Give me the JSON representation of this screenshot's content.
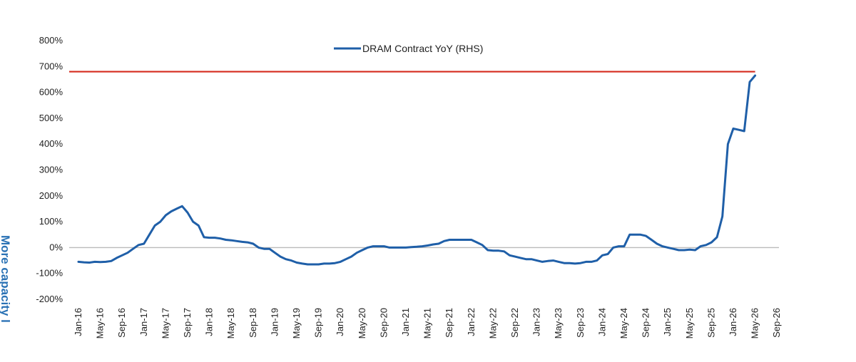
{
  "side_label": "More capacity l",
  "chart_data": {
    "type": "line",
    "title": "",
    "xlabel": "",
    "ylabel": "",
    "ylim": [
      -200,
      800
    ],
    "y_ticks": [
      800,
      700,
      600,
      500,
      400,
      300,
      200,
      100,
      0,
      -100,
      -200
    ],
    "y_tick_labels": [
      "800%",
      "700%",
      "600%",
      "500%",
      "400%",
      "300%",
      "200%",
      "100%",
      "0%",
      "-100%",
      "-200%"
    ],
    "x_tick_labels": [
      "Jan-16",
      "May-16",
      "Sep-16",
      "Jan-17",
      "May-17",
      "Sep-17",
      "Jan-18",
      "May-18",
      "Sep-18",
      "Jan-19",
      "May-19",
      "Sep-19",
      "Jan-20",
      "May-20",
      "Sep-20",
      "Jan-21",
      "May-21",
      "Sep-21",
      "Jan-22",
      "May-22",
      "Sep-22",
      "Jan-23",
      "May-23",
      "Sep-23",
      "Jan-24",
      "May-24",
      "Sep-24",
      "Jan-25",
      "May-25",
      "Sep-25",
      "Jan-26",
      "May-26",
      "Sep-26"
    ],
    "legend": {
      "position": "top-center",
      "entries": [
        "DRAM Contract YoY (RHS)"
      ]
    },
    "grid": false,
    "reference_lines": [
      {
        "axis": "y",
        "value": 0,
        "color": "#bbbbbb"
      },
      {
        "axis": "y",
        "value": 680,
        "color": "#d52b1e"
      }
    ],
    "series": [
      {
        "name": "DRAM Contract YoY (RHS)",
        "color": "#1f5fa8",
        "x": [
          "Jan-16",
          "Feb-16",
          "Mar-16",
          "Apr-16",
          "May-16",
          "Jun-16",
          "Jul-16",
          "Aug-16",
          "Sep-16",
          "Oct-16",
          "Nov-16",
          "Dec-16",
          "Jan-17",
          "Feb-17",
          "Mar-17",
          "Apr-17",
          "May-17",
          "Jun-17",
          "Jul-17",
          "Aug-17",
          "Sep-17",
          "Oct-17",
          "Nov-17",
          "Dec-17",
          "Jan-18",
          "Feb-18",
          "Mar-18",
          "Apr-18",
          "May-18",
          "Jun-18",
          "Jul-18",
          "Aug-18",
          "Sep-18",
          "Oct-18",
          "Nov-18",
          "Dec-18",
          "Jan-19",
          "Feb-19",
          "Mar-19",
          "Apr-19",
          "May-19",
          "Jun-19",
          "Jul-19",
          "Aug-19",
          "Sep-19",
          "Oct-19",
          "Nov-19",
          "Dec-19",
          "Jan-20",
          "Feb-20",
          "Mar-20",
          "Apr-20",
          "May-20",
          "Jun-20",
          "Jul-20",
          "Aug-20",
          "Sep-20",
          "Oct-20",
          "Nov-20",
          "Dec-20",
          "Jan-21",
          "Feb-21",
          "Mar-21",
          "Apr-21",
          "May-21",
          "Jun-21",
          "Jul-21",
          "Aug-21",
          "Sep-21",
          "Oct-21",
          "Nov-21",
          "Dec-21",
          "Jan-22",
          "Feb-22",
          "Mar-22",
          "Apr-22",
          "May-22",
          "Jun-22",
          "Jul-22",
          "Aug-22",
          "Sep-22",
          "Oct-22",
          "Nov-22",
          "Dec-22",
          "Jan-23",
          "Feb-23",
          "Mar-23",
          "Apr-23",
          "May-23",
          "Jun-23",
          "Jul-23",
          "Aug-23",
          "Sep-23",
          "Oct-23",
          "Nov-23",
          "Dec-23",
          "Jan-24",
          "Feb-24",
          "Mar-24",
          "Apr-24",
          "May-24",
          "Jun-24",
          "Jul-24",
          "Aug-24",
          "Sep-24",
          "Oct-24",
          "Nov-24",
          "Dec-24",
          "Jan-25",
          "Feb-25",
          "Mar-25",
          "Apr-25",
          "May-25",
          "Jun-25",
          "Jul-25",
          "Aug-25",
          "Sep-25",
          "Oct-25",
          "Nov-25",
          "Dec-25",
          "Jan-26",
          "Feb-26",
          "Mar-26",
          "Apr-26",
          "May-26"
        ],
        "values": [
          -55,
          -57,
          -58,
          -55,
          -56,
          -55,
          -52,
          -40,
          -30,
          -20,
          -5,
          10,
          15,
          50,
          85,
          100,
          125,
          140,
          150,
          160,
          135,
          100,
          85,
          40,
          38,
          38,
          35,
          30,
          28,
          25,
          22,
          20,
          15,
          0,
          -5,
          -5,
          -20,
          -35,
          -45,
          -50,
          -58,
          -62,
          -65,
          -65,
          -65,
          -62,
          -62,
          -60,
          -55,
          -45,
          -35,
          -20,
          -10,
          0,
          5,
          5,
          5,
          0,
          0,
          0,
          0,
          2,
          3,
          5,
          8,
          12,
          15,
          25,
          30,
          30,
          30,
          30,
          30,
          20,
          10,
          -10,
          -12,
          -12,
          -15,
          -30,
          -35,
          -40,
          -45,
          -45,
          -50,
          -55,
          -52,
          -50,
          -55,
          -60,
          -60,
          -62,
          -60,
          -55,
          -55,
          -50,
          -30,
          -25,
          0,
          5,
          5,
          50,
          50,
          50,
          45,
          30,
          15,
          5,
          0,
          -5,
          -10,
          -10,
          -8,
          -10,
          5,
          10,
          20,
          40,
          120,
          400,
          460,
          455,
          450,
          640,
          665
        ]
      }
    ]
  }
}
